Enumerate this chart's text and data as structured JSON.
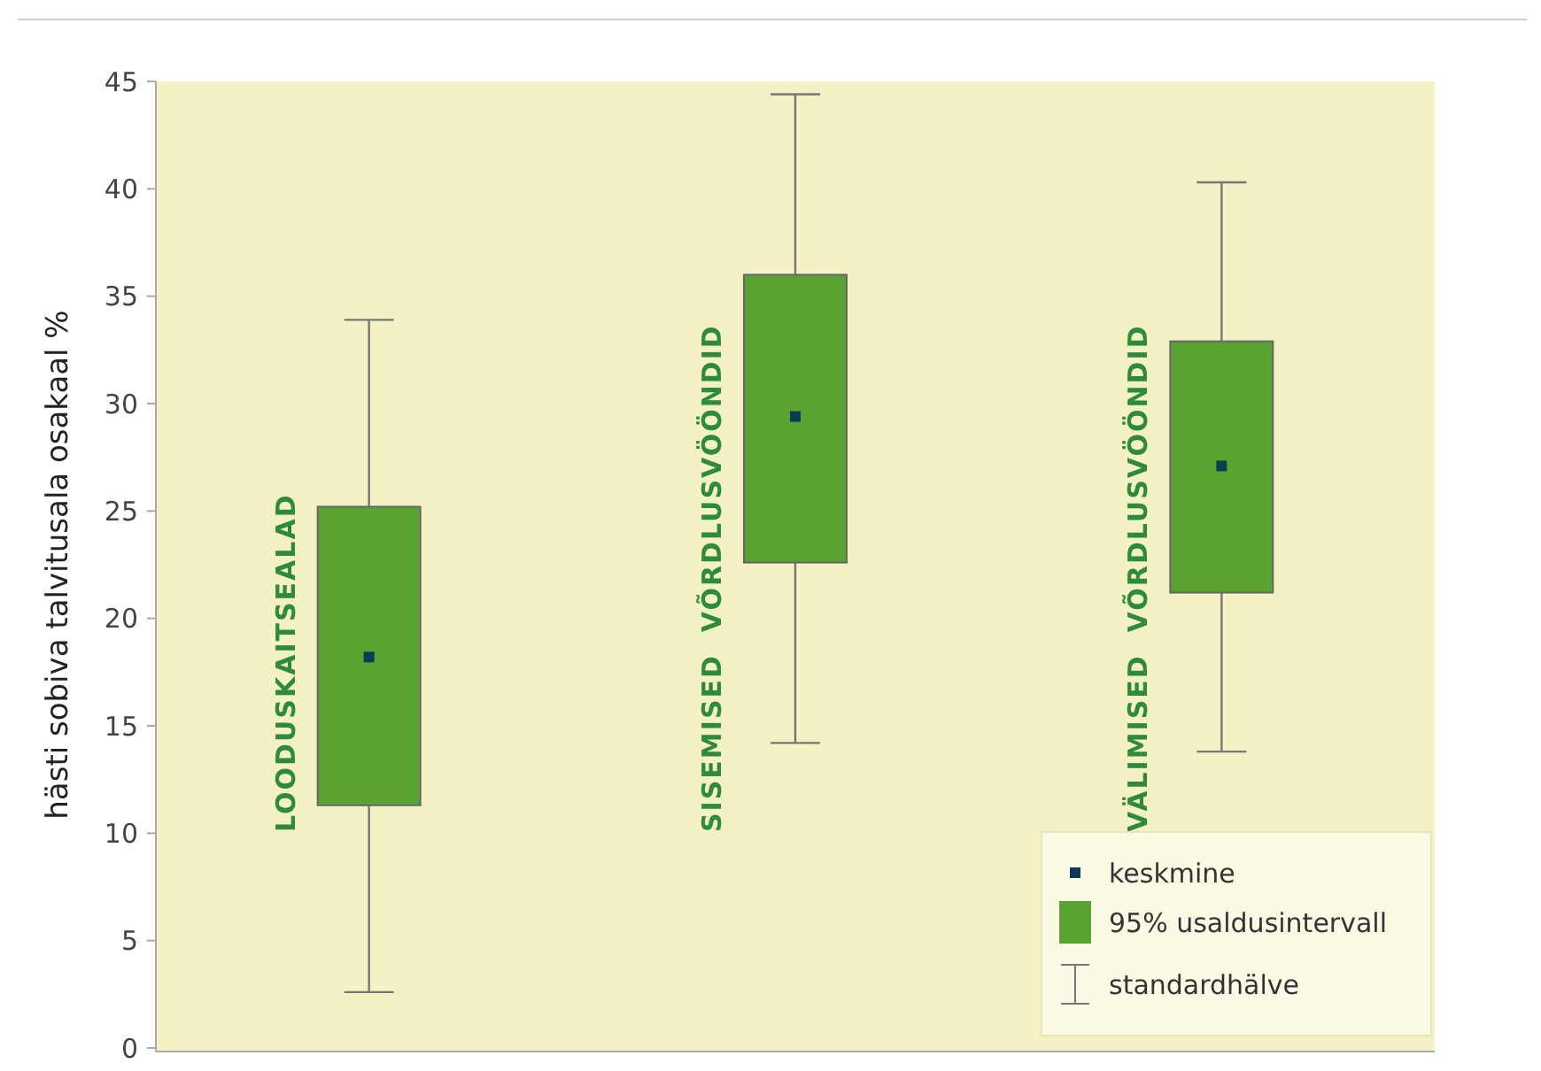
{
  "chart_data": {
    "type": "box",
    "ylabel": "hästi sobiva talvitusala osakaal %",
    "categories": [
      "LOODUSKAITSEALAD",
      "SISEMISED  VÕRDLUSVÖÖNDID",
      "VÄLIMISED  VÕRDLUSVÖÖNDID"
    ],
    "ylim": [
      0,
      45
    ],
    "yticks": [
      0,
      5,
      10,
      15,
      20,
      25,
      30,
      35,
      40,
      45
    ],
    "series": [
      {
        "name": "95% usaldusintervall",
        "color": "#5aa332",
        "boxes": [
          {
            "low": 2.6,
            "q1": 11.3,
            "q3": 25.2,
            "high": 33.9
          },
          {
            "low": 14.2,
            "q1": 22.6,
            "q3": 36.0,
            "high": 44.4
          },
          {
            "low": 13.8,
            "q1": 21.2,
            "q3": 32.9,
            "high": 40.3
          }
        ]
      },
      {
        "type": "scatter",
        "name": "keskmine",
        "color": "#0d3a52",
        "marker": "square",
        "values": [
          18.2,
          29.4,
          27.1
        ]
      }
    ],
    "annotations": [
      "standardhälve"
    ],
    "legend": "bottom right",
    "grid": false
  }
}
